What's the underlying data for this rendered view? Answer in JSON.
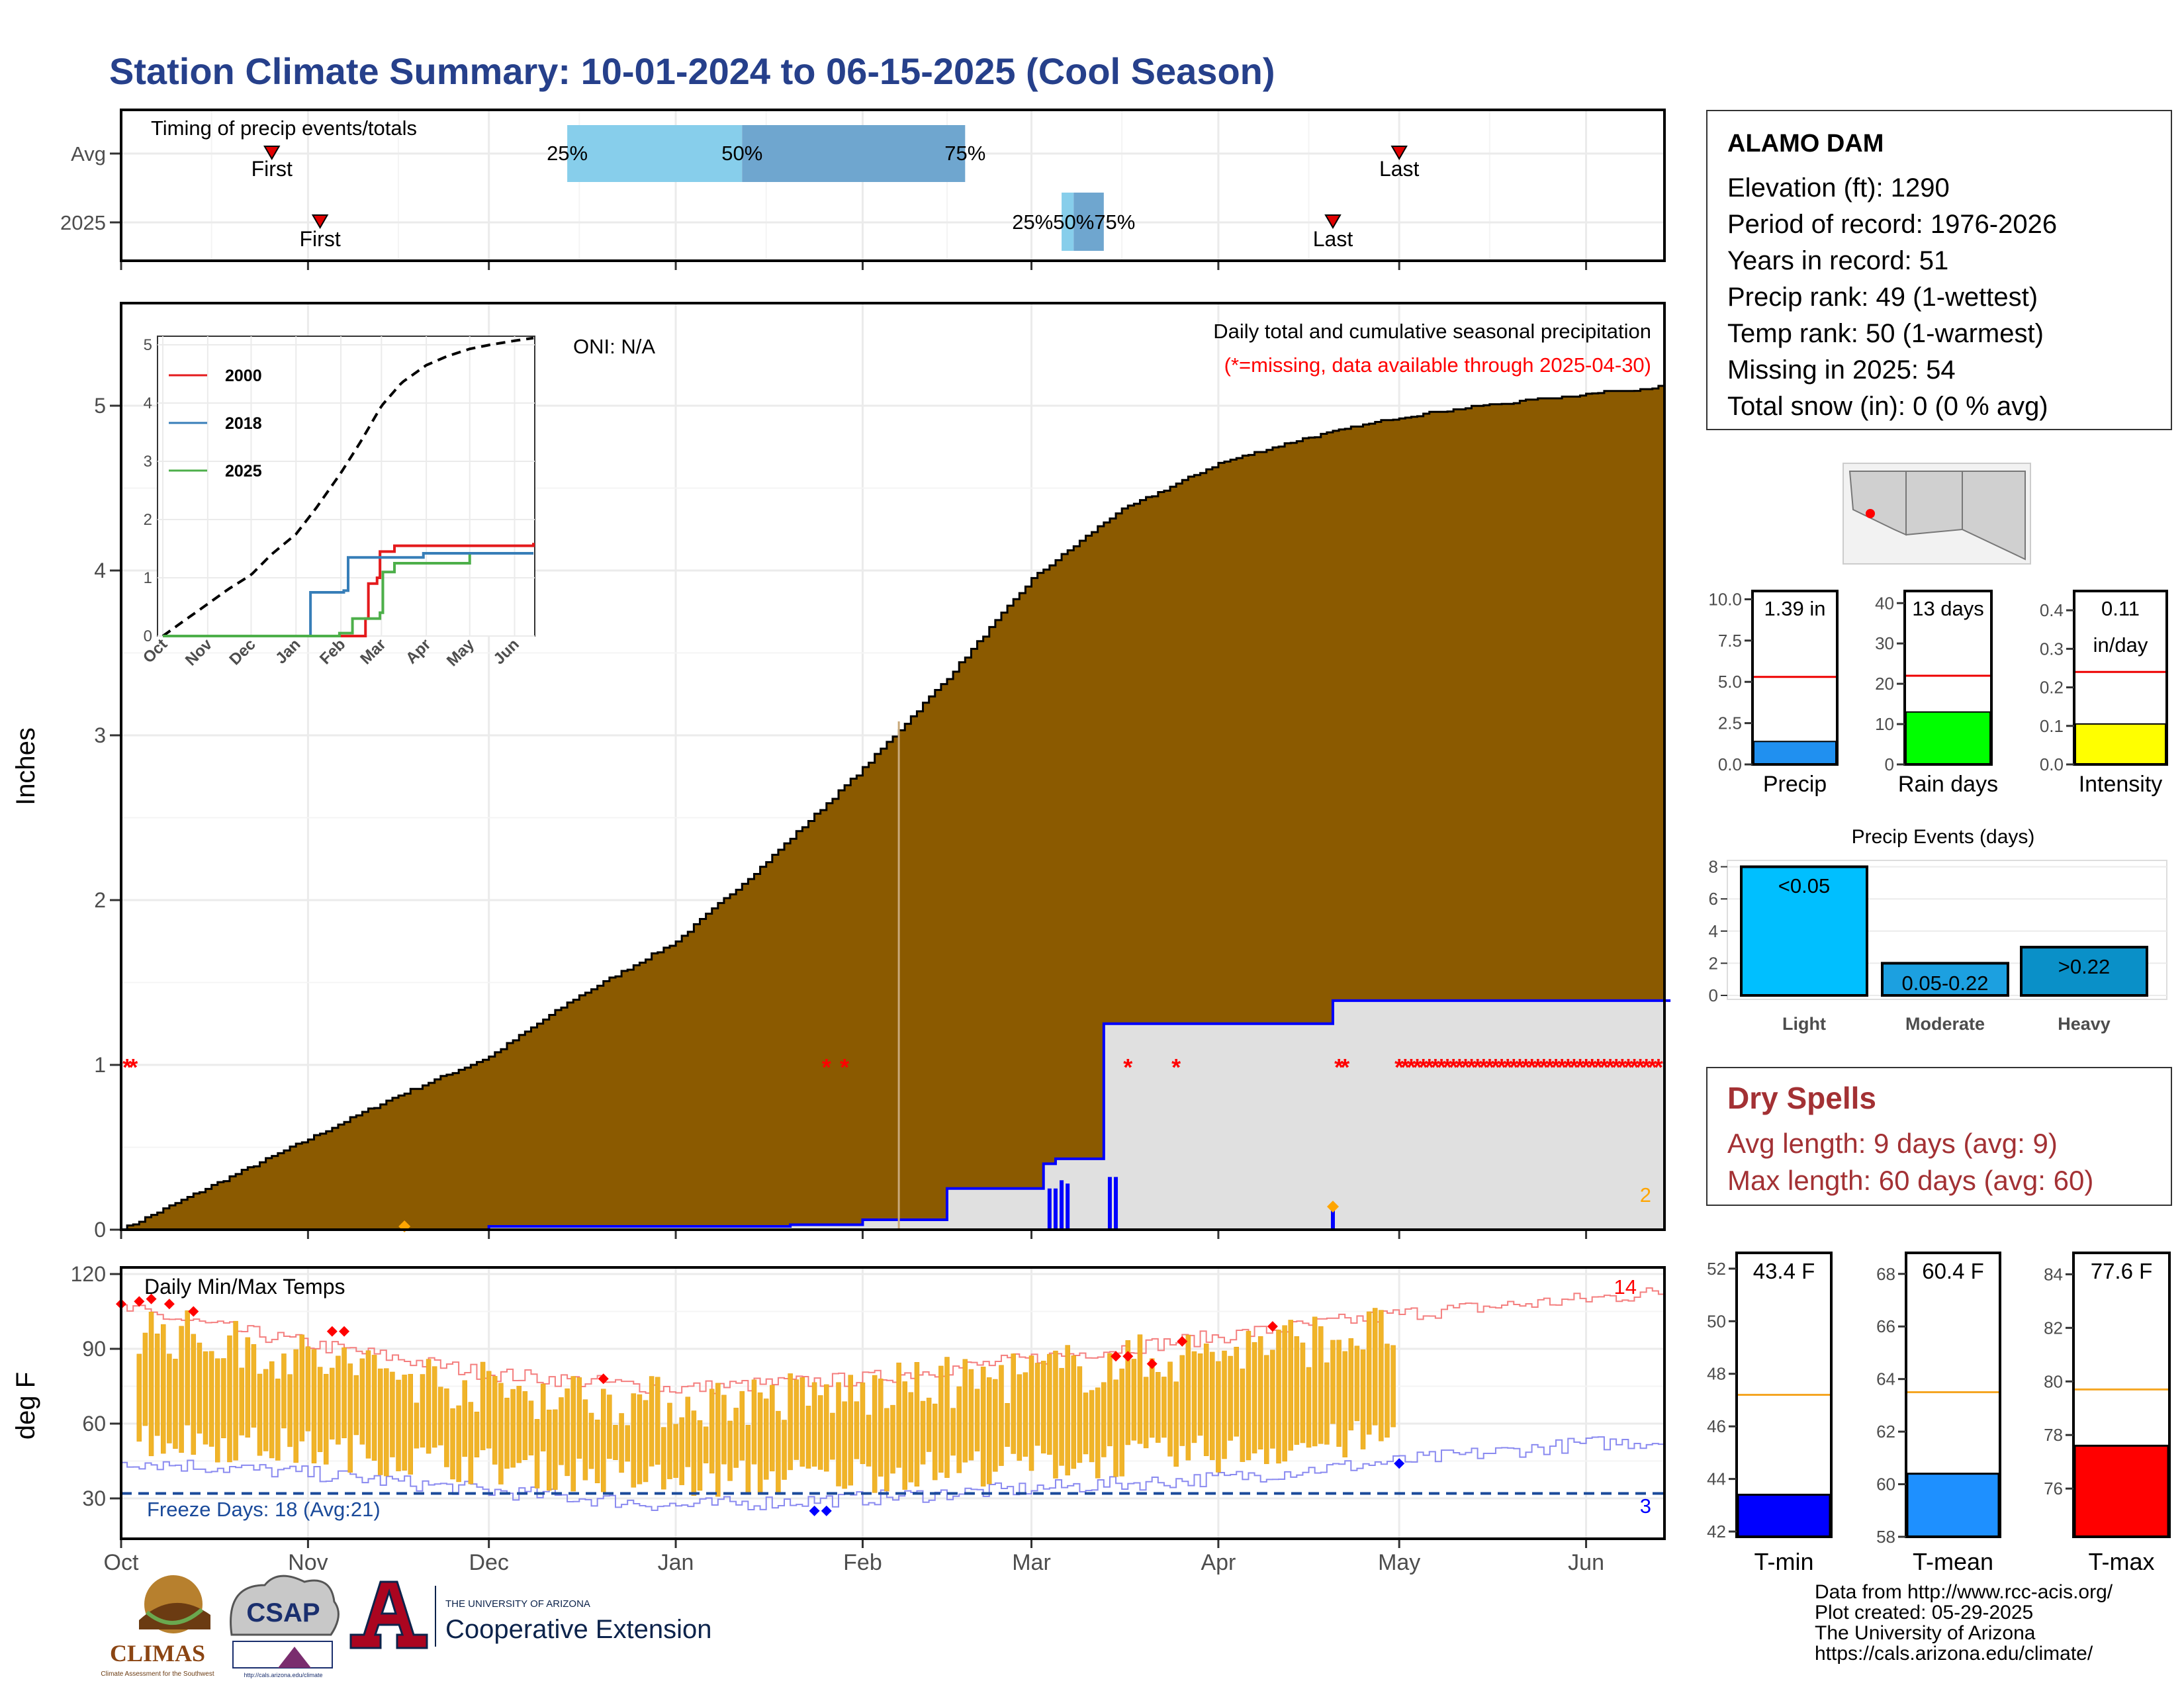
{
  "title": "Station Climate Summary: 10-01-2024 to 06-15-2025 (Cool Season)",
  "colors": {
    "title": "#26408b",
    "cumulative_fill": "#8b5a00",
    "missing": "#ff0000",
    "current_line": "#0000ff",
    "current_fill": "#e0e0e0",
    "temp_bar": "#f0b429",
    "tmax_line": "#f47f7f",
    "tmin_line": "#8a8af0",
    "freeze_line": "#1a4a9a",
    "q_light": "#87ceeb",
    "q_dark": "#6fa6cf"
  },
  "timing": {
    "title": "Timing of precip events/totals",
    "rows": [
      "Avg",
      "2025"
    ],
    "avg": {
      "first_label": "First",
      "first_date": "2024-10-26",
      "last_label": "Last",
      "last_date": "2025-05-01",
      "q25_label": "25%",
      "q50_label": "50%",
      "q75_label": "75%",
      "q25": "2024-12-14",
      "q50": "2025-01-12",
      "q75": "2025-02-18"
    },
    "y2025": {
      "first_label": "First",
      "first_date": "2024-11-03",
      "last_label": "Last",
      "last_date": "2025-04-20",
      "q_label": "25%50%75%",
      "q25": "2025-03-06",
      "q50": "2025-03-08",
      "q75": "2025-03-13"
    }
  },
  "precip_panel": {
    "ylabel": "Inches",
    "oni": "ONI: N/A",
    "subtitle": "Daily total and cumulative seasonal precipitation",
    "missing_note": "(*=missing, data available through 2025-04-30)",
    "count_label": "2",
    "ylim": [
      0,
      5.5
    ],
    "yticks": [
      "0",
      "1",
      "2",
      "3",
      "4",
      "5"
    ]
  },
  "inset": {
    "xticks": [
      "Oct",
      "Nov",
      "Dec",
      "Jan",
      "Feb",
      "Mar",
      "Apr",
      "May",
      "Jun"
    ],
    "yticks": [
      "0",
      "1",
      "2",
      "3",
      "4",
      "5"
    ],
    "legend": [
      {
        "name": "2000",
        "color": "#e41a1c"
      },
      {
        "name": "2018",
        "color": "#377eb8"
      },
      {
        "name": "2025",
        "color": "#4daf4a"
      }
    ]
  },
  "temp_panel": {
    "ylabel": "deg F",
    "title": "Daily Min/Max Temps",
    "freeze_label": "Freeze Days: 18 (Avg:21)",
    "tmax_count": "14",
    "tmin_count": "3",
    "yticks": [
      "30",
      "60",
      "90",
      "120"
    ],
    "ylim": [
      15,
      122
    ],
    "xticks": [
      "Oct",
      "Nov",
      "Dec",
      "Jan",
      "Feb",
      "Mar",
      "Apr",
      "May",
      "Jun"
    ]
  },
  "station": {
    "name": "ALAMO DAM",
    "lines": [
      "Elevation (ft): 1290",
      "Period of record: 1976-2026",
      "Years in record: 51",
      "Precip rank: 49 (1-wettest)",
      "Temp rank: 50 (1-warmest)",
      "Missing in 2025: 54",
      "Total snow (in): 0 (0 % avg)"
    ]
  },
  "mini_bars": [
    {
      "label": "Precip",
      "value_text": "1.39 in",
      "value": 1.39,
      "avg": 5.3,
      "ylim": [
        0,
        10.5
      ],
      "yticks": [
        "0.0",
        "2.5",
        "5.0",
        "7.5",
        "10.0"
      ],
      "color": "#2090f0"
    },
    {
      "label": "Rain days",
      "value_text": "13 days",
      "value": 13,
      "avg": 22,
      "ylim": [
        0,
        43
      ],
      "yticks": [
        "0",
        "10",
        "20",
        "30",
        "40"
      ],
      "color": "#00ff00"
    },
    {
      "label": "Intensity",
      "value_text": "0.11",
      "value_text2": "in/day",
      "value": 0.105,
      "avg": 0.24,
      "ylim": [
        0,
        0.45
      ],
      "yticks": [
        "0.0",
        "0.1",
        "0.2",
        "0.3",
        "0.4"
      ],
      "color": "#ffff00"
    }
  ],
  "precip_events": {
    "title": "Precip Events (days)",
    "categories": [
      "Light",
      "Moderate",
      "Heavy"
    ],
    "values": [
      8,
      2,
      3
    ],
    "bar_labels": [
      "<0.05",
      "0.05-0.22",
      ">0.22"
    ],
    "yticks": [
      "0",
      "2",
      "4",
      "6",
      "8"
    ],
    "colors": [
      "#00bfff",
      "#1ca0e0",
      "#0a90c8"
    ]
  },
  "dry_spells": {
    "title": "Dry Spells",
    "avg_line": "Avg length: 9 days (avg: 9)",
    "max_line": "Max length: 60 days (avg: 60)"
  },
  "temp_bars": [
    {
      "label": "T-min",
      "value_text": "43.4 F",
      "value": 43.4,
      "avg": 47.2,
      "ylim": [
        41.8,
        52.6
      ],
      "yticks": [
        "42",
        "44",
        "46",
        "48",
        "50",
        "52"
      ],
      "color": "#0000ff"
    },
    {
      "label": "T-mean",
      "value_text": "60.4 F",
      "value": 60.4,
      "avg": 63.5,
      "ylim": [
        58,
        68.8
      ],
      "yticks": [
        "58",
        "60",
        "62",
        "64",
        "66",
        "68"
      ],
      "color": "#1e90ff"
    },
    {
      "label": "T-max",
      "value_text": "77.6 F",
      "value": 77.6,
      "avg": 79.7,
      "ylim": [
        74.2,
        84.8
      ],
      "yticks": [
        "76",
        "78",
        "80",
        "82",
        "84"
      ],
      "color": "#ff0000"
    }
  ],
  "credits": [
    "Data from http://www.rcc-acis.org/",
    "Plot created: 05-29-2025",
    "The University of Arizona",
    "https://cals.arizona.edu/climate/"
  ],
  "logos": {
    "climas": "CLIMAS",
    "climas_sub": "Climate Assessment for the Southwest",
    "csap": "CSAP",
    "csap_url": "http://cals.arizona.edu/climate",
    "ua_small": "THE UNIVERSITY OF ARIZONA",
    "ua_big": "Cooperative Extension"
  },
  "chart_data": [
    {
      "type": "area",
      "title": "Daily total and cumulative seasonal precipitation",
      "ylabel": "Inches",
      "ylim": [
        0,
        5.5
      ],
      "series": [
        {
          "name": "Average cumulative",
          "x": [
            "2024-10-01",
            "2024-10-15",
            "2024-11-01",
            "2024-11-15",
            "2024-12-01",
            "2024-12-15",
            "2025-01-01",
            "2025-01-15",
            "2025-02-01",
            "2025-02-15",
            "2025-03-01",
            "2025-03-15",
            "2025-04-01",
            "2025-04-15",
            "2025-05-01",
            "2025-05-15",
            "2025-06-01",
            "2025-06-15"
          ],
          "y": [
            0.0,
            0.25,
            0.55,
            0.8,
            1.05,
            1.4,
            1.75,
            2.2,
            2.8,
            3.35,
            3.95,
            4.35,
            4.65,
            4.8,
            4.93,
            5.0,
            5.07,
            5.12
          ]
        },
        {
          "x": [
            "2024-10-01",
            "2024-11-01",
            "2024-12-01",
            "2025-01-01",
            "2025-01-20",
            "2025-02-01",
            "2025-02-15",
            "2025-03-01",
            "2025-03-03",
            "2025-03-05",
            "2025-03-13",
            "2025-04-16",
            "2025-04-20",
            "2025-06-15"
          ],
          "y": [
            0.0,
            0.0,
            0.02,
            0.02,
            0.03,
            0.06,
            0.25,
            0.25,
            0.4,
            0.43,
            1.25,
            1.25,
            1.39,
            1.39
          ]
        }
      ]
    },
    {
      "type": "line",
      "title": "Daily Min/Max Temps",
      "ylabel": "deg F",
      "ylim": [
        15,
        122
      ],
      "series": [
        {
          "name": "Avg Tmax",
          "x": [
            "2024-10-01",
            "2024-11-01",
            "2024-12-01",
            "2025-01-01",
            "2025-02-01",
            "2025-03-01",
            "2025-04-01",
            "2025-05-01",
            "2025-06-01",
            "2025-06-15"
          ],
          "y": [
            106,
            92,
            80,
            74,
            78,
            86,
            95,
            104,
            110,
            113
          ]
        },
        {
          "name": "Avg Tmin",
          "x": [
            "2024-10-01",
            "2024-11-01",
            "2024-12-01",
            "2025-01-01",
            "2025-02-01",
            "2025-03-01",
            "2025-04-01",
            "2025-05-01",
            "2025-06-01",
            "2025-06-15"
          ],
          "y": [
            45,
            40,
            33,
            27,
            30,
            34,
            38,
            45,
            52,
            53
          ]
        },
        {
          "name": "Freeze line",
          "x": [
            "2024-10-01",
            "2025-06-15"
          ],
          "y": [
            32,
            32
          ]
        }
      ]
    },
    {
      "type": "bar",
      "title": "Precip Events (days)",
      "categories": [
        "Light",
        "Moderate",
        "Heavy"
      ],
      "values": [
        8,
        2,
        3
      ]
    },
    {
      "type": "bar",
      "categories": [
        "Precip",
        "Rain days",
        "Intensity"
      ],
      "series": [
        {
          "values": [
            1.39,
            13,
            0.105
          ]
        }
      ]
    },
    {
      "type": "bar",
      "categories": [
        "T-min",
        "T-mean",
        "T-max"
      ],
      "series": [
        {
          "values": [
            43.4,
            60.4,
            77.6
          ]
        }
      ]
    }
  ]
}
